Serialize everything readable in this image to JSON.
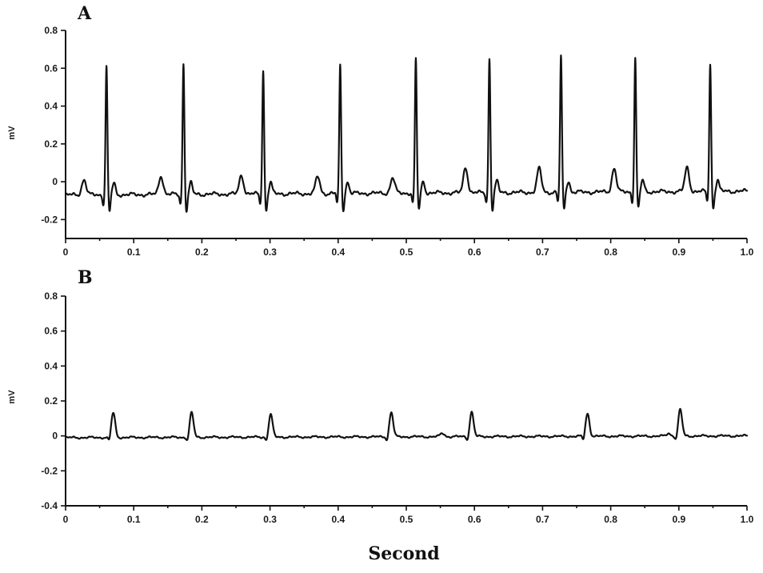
{
  "chart_data": [
    {
      "type": "line",
      "panel_label": "A",
      "ylabel": "mV",
      "xlim": [
        0,
        1.0
      ],
      "ylim": [
        -0.3,
        0.8
      ],
      "xticks": [
        0,
        0.1,
        0.2,
        0.3,
        0.4,
        0.5,
        0.6,
        0.7,
        0.8,
        0.9,
        1.0
      ],
      "xtick_labels": [
        "0",
        "0.1",
        "0.2",
        "0.3",
        "0.4",
        "0.5",
        "0.6",
        "0.7",
        "0.8",
        "0.9",
        "1.0"
      ],
      "yticks": [
        -0.2,
        0,
        0.2,
        0.4,
        0.6,
        0.8
      ],
      "ytick_labels": [
        "-0.2",
        "0",
        "0.2",
        "0.4",
        "0.6",
        "0.8"
      ],
      "baseline_start": -0.07,
      "baseline_end": -0.05,
      "r_peaks": [
        {
          "t": 0.06,
          "amp": 0.62
        },
        {
          "t": 0.173,
          "amp": 0.63
        },
        {
          "t": 0.29,
          "amp": 0.59
        },
        {
          "t": 0.403,
          "amp": 0.62
        },
        {
          "t": 0.514,
          "amp": 0.65
        },
        {
          "t": 0.622,
          "amp": 0.65
        },
        {
          "t": 0.727,
          "amp": 0.66
        },
        {
          "t": 0.836,
          "amp": 0.65
        },
        {
          "t": 0.946,
          "amp": 0.61
        }
      ],
      "p_waves": [
        {
          "t": 0.027,
          "amp": 0.0
        },
        {
          "t": 0.14,
          "amp": 0.02
        },
        {
          "t": 0.258,
          "amp": 0.02
        },
        {
          "t": 0.37,
          "amp": 0.01
        },
        {
          "t": 0.48,
          "amp": 0.0
        },
        {
          "t": 0.587,
          "amp": 0.06
        },
        {
          "t": 0.695,
          "amp": 0.05
        },
        {
          "t": 0.805,
          "amp": 0.05
        },
        {
          "t": 0.912,
          "amp": 0.05
        }
      ]
    },
    {
      "type": "line",
      "panel_label": "B",
      "ylabel": "mV",
      "xlim": [
        0,
        1.0
      ],
      "ylim": [
        -0.4,
        0.8
      ],
      "xticks": [
        0,
        0.1,
        0.2,
        0.3,
        0.4,
        0.5,
        0.6,
        0.7,
        0.8,
        0.9,
        1.0
      ],
      "xtick_labels": [
        "0",
        "0.1",
        "0.2",
        "0.3",
        "0.4",
        "0.5",
        "0.6",
        "0.7",
        "0.8",
        "0.9",
        "1.0"
      ],
      "yticks": [
        -0.4,
        -0.2,
        0,
        0.2,
        0.4,
        0.6,
        0.8
      ],
      "ytick_labels": [
        "-0.4",
        "-0.2",
        "0",
        "0.2",
        "0.4",
        "0.6",
        "0.8"
      ],
      "baseline_start": -0.01,
      "baseline_end": 0.0,
      "peaks": [
        {
          "t": 0.07,
          "amp": 0.13
        },
        {
          "t": 0.185,
          "amp": 0.13
        },
        {
          "t": 0.301,
          "amp": 0.12
        },
        {
          "t": 0.478,
          "amp": 0.13
        },
        {
          "t": 0.596,
          "amp": 0.13
        },
        {
          "t": 0.766,
          "amp": 0.12
        },
        {
          "t": 0.902,
          "amp": 0.14
        }
      ]
    }
  ],
  "xlabel": "Second"
}
